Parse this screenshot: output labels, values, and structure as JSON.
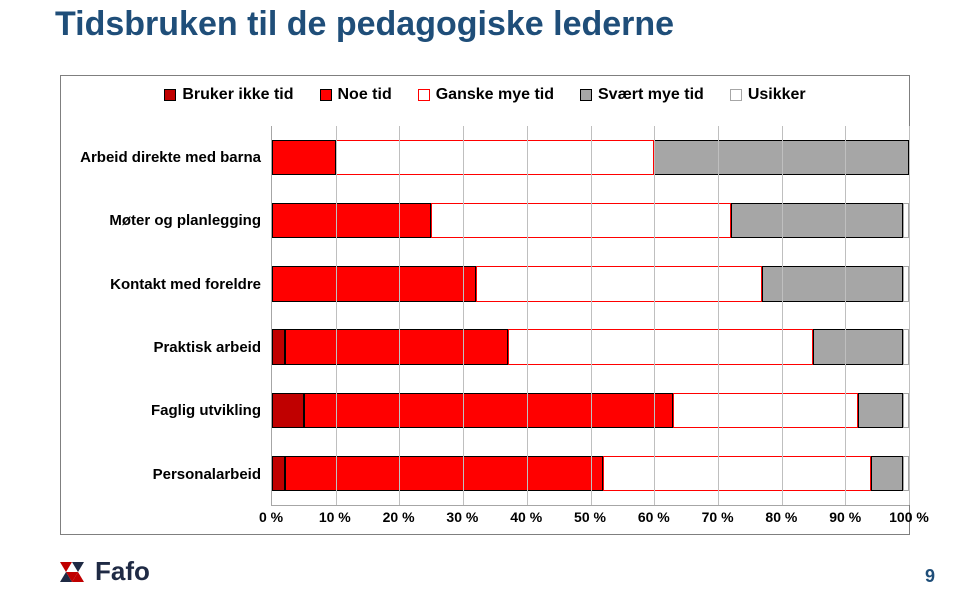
{
  "title": "Tidsbruken til de pedagogiske lederne",
  "page_number": "9",
  "logo_text": "Fafo",
  "chart": {
    "type": "stacked-bar-horizontal",
    "background_color": "#ffffff",
    "frame_border_color": "#7f7f7f",
    "grid_color": "#bfbfbf",
    "xlim": [
      0,
      100
    ],
    "xtick_step": 10,
    "xticks": [
      "0 %",
      "10 %",
      "20 %",
      "30 %",
      "40 %",
      "50 %",
      "60 %",
      "70 %",
      "80 %",
      "90 %",
      "100 %"
    ],
    "legend": [
      {
        "label": "Bruker ikke tid",
        "fill": "#c00000",
        "border": "#000000"
      },
      {
        "label": "Noe tid",
        "fill": "#ff0000",
        "border": "#000000"
      },
      {
        "label": "Ganske mye tid",
        "fill": "#ffffff",
        "border": "#ff0000"
      },
      {
        "label": "Svært mye tid",
        "fill": "#a6a6a6",
        "border": "#000000"
      },
      {
        "label": "Usikker",
        "fill": "#ffffff",
        "border": "#a6a6a6"
      }
    ],
    "categories": [
      "Arbeid direkte med barna",
      "Møter og planlegging",
      "Kontakt med foreldre",
      "Praktisk arbeid",
      "Faglig utvikling",
      "Personalarbeid"
    ],
    "series": [
      {
        "name": "Bruker ikke tid",
        "fill": "#c00000",
        "border": "#000000",
        "values": [
          0,
          0,
          0,
          2,
          5,
          2
        ]
      },
      {
        "name": "Noe tid",
        "fill": "#ff0000",
        "border": "#000000",
        "values": [
          10,
          25,
          32,
          35,
          58,
          50
        ]
      },
      {
        "name": "Ganske mye tid",
        "fill": "#ffffff",
        "border": "#ff0000",
        "values": [
          50,
          47,
          45,
          48,
          29,
          42
        ]
      },
      {
        "name": "Svært mye tid",
        "fill": "#a6a6a6",
        "border": "#000000",
        "values": [
          40,
          27,
          22,
          14,
          7,
          5
        ]
      },
      {
        "name": "Usikker",
        "fill": "#ffffff",
        "border": "#a6a6a6",
        "values": [
          0,
          1,
          1,
          1,
          1,
          1
        ]
      }
    ],
    "label_fontsize_pt": 11,
    "label_fontweight": "700",
    "tick_fontsize_pt": 10,
    "title_fontsize_pt": 26,
    "title_color": "#1f4e79",
    "bar_height_ratio": 0.56
  }
}
